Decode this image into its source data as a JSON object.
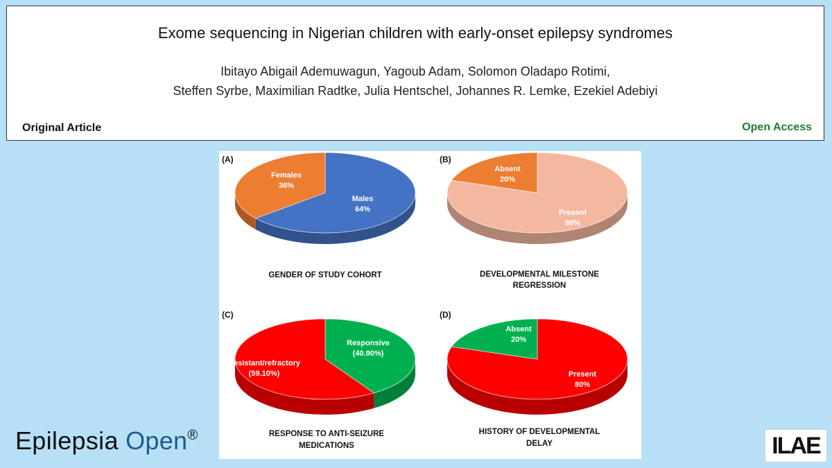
{
  "header": {
    "title": "Exome sequencing in Nigerian children with early-onset epilepsy syndromes",
    "authors_line1": "Ibitayo Abigail Ademuwagun, Yagoub Adam, Solomon Oladapo Rotimi,",
    "authors_line2": "Steffen Syrbe, Maximilian Radtke, Julia Hentschel, Johannes R. Lemke, Ezekiel Adebiyi",
    "article_type": "Original Article",
    "access": "Open Access"
  },
  "journal": {
    "name_part1": "Epilepsia",
    "name_part2": "Open",
    "registered": "®",
    "logo_text": "ILAE"
  },
  "chart_data": [
    {
      "type": "pie",
      "panel": "(A)",
      "caption": [
        "GENDER OF STUDY COHORT"
      ],
      "slices": [
        {
          "label": "Males",
          "value_text": "64%",
          "value": 64,
          "color": "#4472c4"
        },
        {
          "label": "Females",
          "value_text": "36%",
          "value": 36,
          "color": "#ed7d31"
        }
      ]
    },
    {
      "type": "pie",
      "panel": "(B)",
      "caption": [
        "DEVELOPMENTAL MILESTONE",
        "REGRESSION"
      ],
      "slices": [
        {
          "label": "Present",
          "value_text": "80%",
          "value": 80,
          "color": "#f4b8a0"
        },
        {
          "label": "Absent",
          "value_text": "20%",
          "value": 20,
          "color": "#ed7d31"
        }
      ]
    },
    {
      "type": "pie",
      "panel": "(C)",
      "caption": [
        "RESPONSE TO ANTI-SEIZURE",
        "MEDICATIONS"
      ],
      "slices": [
        {
          "label": "Responsive",
          "value_text": "(40.90%)",
          "value": 40.9,
          "color": "#00b050"
        },
        {
          "label": "Resistant/refractory",
          "value_text": "(59.10%)",
          "value": 59.1,
          "color": "#ff0000"
        }
      ]
    },
    {
      "type": "pie",
      "panel": "(D)",
      "caption": [
        "HISTORY OF DEVELOPMENTAL",
        "DELAY"
      ],
      "slices": [
        {
          "label": "Present",
          "value_text": "80%",
          "value": 80,
          "color": "#ff0000"
        },
        {
          "label": "Absent",
          "value_text": "20%",
          "value": 20,
          "color": "#00b050"
        }
      ]
    }
  ]
}
